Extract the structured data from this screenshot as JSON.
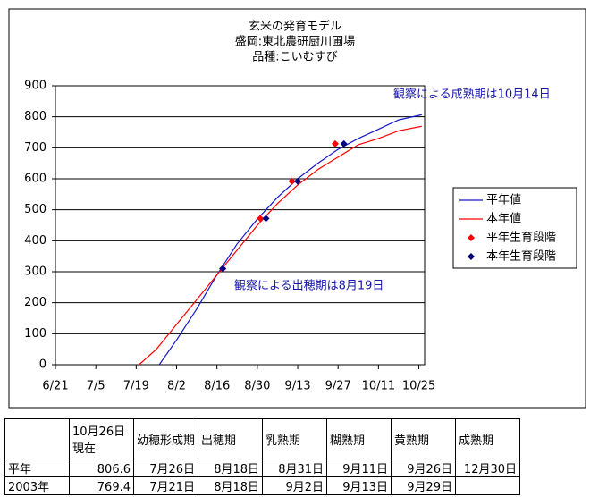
{
  "chart_data": {
    "type": "line",
    "title": [
      "玄米の発育モデル",
      "盛岡:東北農研厨川圃場",
      "品種:こいむすび"
    ],
    "annotations": [
      "観察による成熟期は10月14日",
      "観察による出穂期は8月19日"
    ],
    "xlim": [
      172,
      300
    ],
    "xticks": [
      {
        "value": 172,
        "label": "6/21"
      },
      {
        "value": 186,
        "label": "7/5"
      },
      {
        "value": 200,
        "label": "7/19"
      },
      {
        "value": 214,
        "label": "8/2"
      },
      {
        "value": 228,
        "label": "8/16"
      },
      {
        "value": 242,
        "label": "8/30"
      },
      {
        "value": 256,
        "label": "9/13"
      },
      {
        "value": 270,
        "label": "9/27"
      },
      {
        "value": 284,
        "label": "10/11"
      },
      {
        "value": 298,
        "label": "10/25"
      }
    ],
    "ylim": [
      0,
      900
    ],
    "yticks": [
      0,
      100,
      200,
      300,
      400,
      500,
      600,
      700,
      800,
      900
    ],
    "grid": true,
    "legend": "right",
    "series": [
      {
        "name": "平年値",
        "type": "line",
        "color": "#1818c8",
        "x": [
          208,
          214,
          221,
          228,
          235,
          242,
          249,
          256,
          263,
          270,
          277,
          284,
          291,
          299
        ],
        "values": [
          0,
          80,
          180,
          290,
          390,
          470,
          540,
          600,
          650,
          695,
          730,
          760,
          790,
          806.6
        ]
      },
      {
        "name": "本年値",
        "type": "line",
        "color": "#ff0000",
        "x": [
          201,
          207,
          214,
          221,
          228,
          235,
          242,
          249,
          256,
          263,
          270,
          277,
          284,
          291,
          299
        ],
        "values": [
          0,
          50,
          130,
          210,
          290,
          370,
          450,
          520,
          580,
          630,
          670,
          710,
          730,
          755,
          769.4
        ]
      },
      {
        "name": "平年生育段階",
        "type": "scatter",
        "color": "#ff0000",
        "x": [
          230,
          243,
          254,
          269
        ],
        "values": [
          310,
          472,
          592,
          713
        ]
      },
      {
        "name": "本年生育段階",
        "type": "scatter",
        "color": "#000080",
        "x": [
          230,
          245,
          256,
          272
        ],
        "values": [
          310,
          472,
          592,
          713
        ]
      }
    ]
  },
  "table": {
    "header": [
      null,
      "10月26日\n現在",
      "幼穂形成期",
      "出穂期",
      "乳熟期",
      "糊熟期",
      "黄熟期",
      "成熟期"
    ],
    "rows": [
      [
        "平年",
        "806.6",
        "7月26日",
        "8月18日",
        "8月31日",
        "9月11日",
        "9月26日",
        "12月30日"
      ],
      [
        "2003年",
        "769.4",
        "7月21日",
        "8月18日",
        "9月2日",
        "9月13日",
        "9月29日",
        null
      ]
    ]
  }
}
